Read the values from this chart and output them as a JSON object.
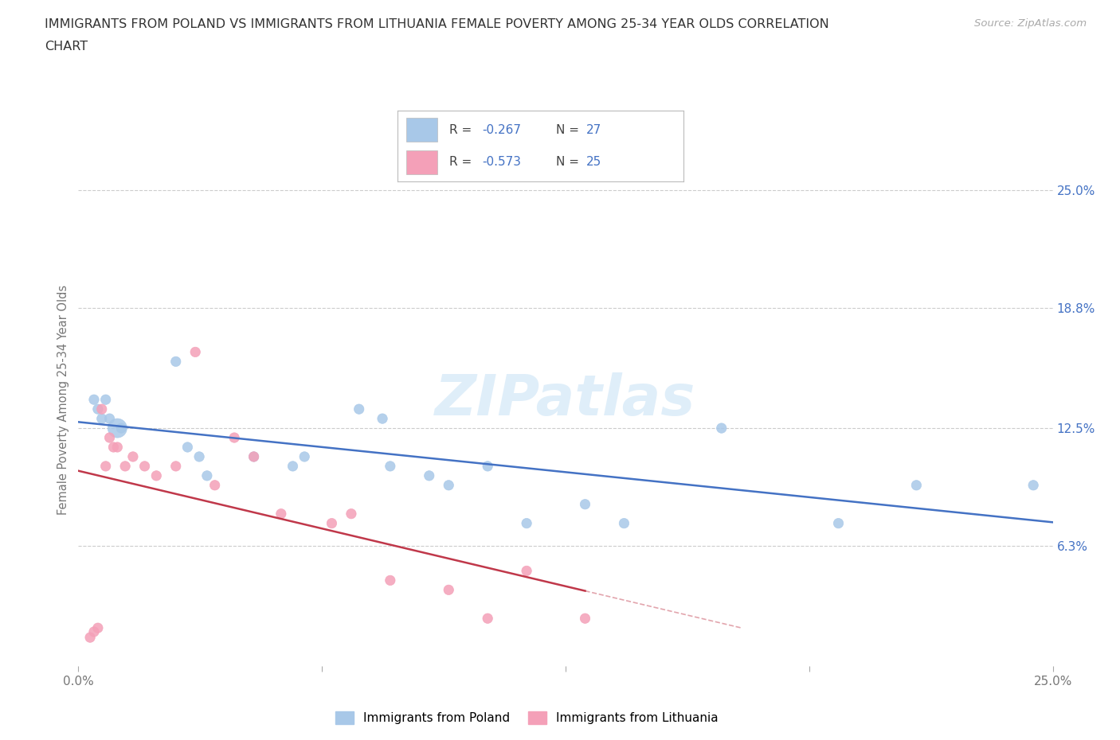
{
  "title_line1": "IMMIGRANTS FROM POLAND VS IMMIGRANTS FROM LITHUANIA FEMALE POVERTY AMONG 25-34 YEAR OLDS CORRELATION",
  "title_line2": "CHART",
  "source": "Source: ZipAtlas.com",
  "ylabel": "Female Poverty Among 25-34 Year Olds",
  "xlim": [
    0.0,
    25.0
  ],
  "ylim": [
    0.0,
    28.0
  ],
  "yticks_right": [
    6.3,
    12.5,
    18.8,
    25.0
  ],
  "ytick_labels_right": [
    "6.3%",
    "12.5%",
    "18.8%",
    "25.0%"
  ],
  "xticks": [
    0.0,
    6.25,
    12.5,
    18.75,
    25.0
  ],
  "xtick_labels": [
    "0.0%",
    "",
    "",
    "",
    "25.0%"
  ],
  "poland_color": "#a8c8e8",
  "poland_line_color": "#4472c4",
  "lithuania_color": "#f4a0b8",
  "lithuania_line_color": "#c0384a",
  "legend_bottom_poland": "Immigrants from Poland",
  "legend_bottom_lithuania": "Immigrants from Lithuania",
  "watermark": "ZIPatlas",
  "poland_scatter_x": [
    0.4,
    0.5,
    0.6,
    0.7,
    0.8,
    1.0,
    1.1,
    2.5,
    2.8,
    3.1,
    3.3,
    4.5,
    5.5,
    5.8,
    7.2,
    7.8,
    8.0,
    9.0,
    9.5,
    10.5,
    11.5,
    13.0,
    14.0,
    16.5,
    19.5,
    21.5,
    24.5
  ],
  "poland_scatter_y": [
    14.0,
    13.5,
    13.0,
    14.0,
    13.0,
    12.5,
    12.5,
    16.0,
    11.5,
    11.0,
    10.0,
    11.0,
    10.5,
    11.0,
    13.5,
    13.0,
    10.5,
    10.0,
    9.5,
    10.5,
    7.5,
    8.5,
    7.5,
    12.5,
    7.5,
    9.5,
    9.5
  ],
  "poland_sizes": [
    80,
    80,
    80,
    80,
    80,
    300,
    80,
    80,
    80,
    80,
    80,
    80,
    80,
    80,
    80,
    80,
    80,
    80,
    80,
    80,
    80,
    80,
    80,
    80,
    80,
    80,
    80
  ],
  "lithuania_scatter_x": [
    0.3,
    0.4,
    0.5,
    0.6,
    0.7,
    0.8,
    0.9,
    1.0,
    1.2,
    1.4,
    1.7,
    2.0,
    2.5,
    3.0,
    3.5,
    4.0,
    4.5,
    5.2,
    6.5,
    7.0,
    8.0,
    9.5,
    10.5,
    11.5,
    13.0
  ],
  "lithuania_scatter_y": [
    1.5,
    1.8,
    2.0,
    13.5,
    10.5,
    12.0,
    11.5,
    11.5,
    10.5,
    11.0,
    10.5,
    10.0,
    10.5,
    16.5,
    9.5,
    12.0,
    11.0,
    8.0,
    7.5,
    8.0,
    4.5,
    4.0,
    2.5,
    5.0,
    2.5
  ],
  "lithuania_sizes": [
    80,
    80,
    80,
    80,
    80,
    80,
    80,
    80,
    80,
    80,
    80,
    80,
    80,
    80,
    80,
    80,
    80,
    80,
    80,
    80,
    80,
    80,
    80,
    80,
    80
  ],
  "background_color": "#ffffff",
  "grid_color": "#cccccc",
  "title_color": "#333333",
  "right_axis_color": "#4472c4",
  "legend_r_poland": "-0.267",
  "legend_n_poland": "27",
  "legend_r_lithuania": "-0.573",
  "legend_n_lithuania": "25"
}
